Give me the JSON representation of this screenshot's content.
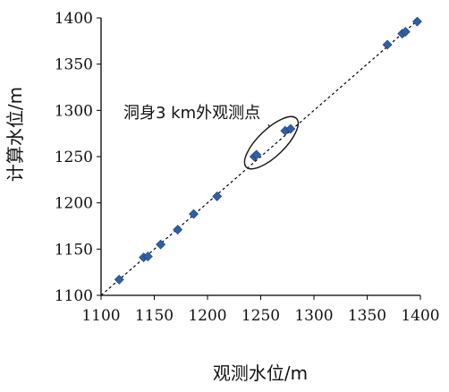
{
  "chart_data": {
    "type": "scatter",
    "title": "",
    "xlabel": "观测水位/m",
    "ylabel": "计算水位/m",
    "xlim": [
      1100,
      1400
    ],
    "ylim": [
      1100,
      1400
    ],
    "xticks": [
      "1100",
      "1150",
      "1200",
      "1250",
      "1300",
      "1350",
      "1400"
    ],
    "yticks": [
      "1100",
      "1150",
      "1200",
      "1250",
      "1300",
      "1350",
      "1400"
    ],
    "points": [
      {
        "x": 1117,
        "y": 1117
      },
      {
        "x": 1140,
        "y": 1141
      },
      {
        "x": 1144,
        "y": 1142
      },
      {
        "x": 1156,
        "y": 1155
      },
      {
        "x": 1172,
        "y": 1171
      },
      {
        "x": 1187,
        "y": 1188
      },
      {
        "x": 1209,
        "y": 1207
      },
      {
        "x": 1244,
        "y": 1250
      },
      {
        "x": 1246,
        "y": 1252
      },
      {
        "x": 1273,
        "y": 1278
      },
      {
        "x": 1278,
        "y": 1280
      },
      {
        "x": 1369,
        "y": 1371
      },
      {
        "x": 1383,
        "y": 1383
      },
      {
        "x": 1386,
        "y": 1385
      },
      {
        "x": 1397,
        "y": 1396
      }
    ],
    "reference_line": {
      "from": [
        1100,
        1100
      ],
      "to": [
        1400,
        1400
      ],
      "style": "dashed"
    },
    "annotation": {
      "text": "洞身3 km外观测点",
      "ellipse_center": [
        1260,
        1265
      ]
    },
    "marker_color": "#2f5fa7",
    "grid": false
  }
}
